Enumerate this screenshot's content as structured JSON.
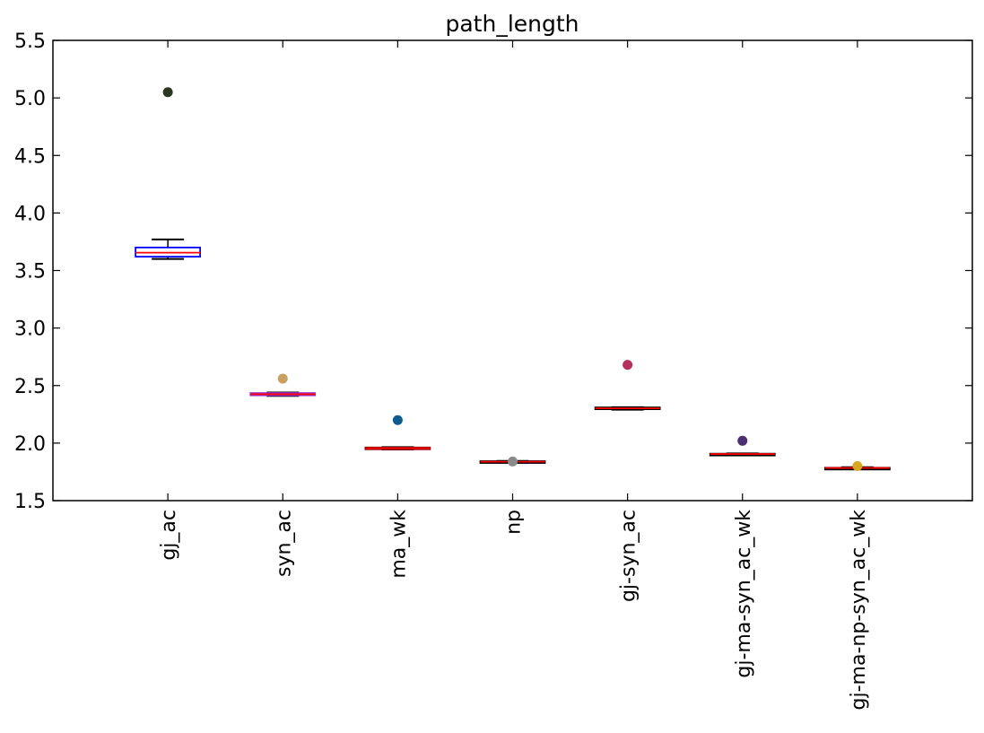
{
  "chart_data": {
    "type": "box",
    "title": "path_length",
    "xlabel": "",
    "ylabel": "",
    "ylim": [
      1.5,
      5.5
    ],
    "yticks": [
      "1.5",
      "2.0",
      "2.5",
      "3.0",
      "3.5",
      "4.0",
      "4.5",
      "5.0",
      "5.5"
    ],
    "grid": false,
    "categories": [
      "gj_ac",
      "syn_ac",
      "ma_wk",
      "np",
      "gj-syn_ac",
      "gj-ma-syn_ac_wk",
      "gj-ma-np-syn_ac_wk"
    ],
    "boxes": [
      {
        "q1": 3.62,
        "median": 3.655,
        "q3": 3.7,
        "whisker_low": 3.6,
        "whisker_high": 3.77,
        "box_color": "#0000ff",
        "whisker_color": "#000000",
        "median_color": "#ff0000"
      },
      {
        "q1": 2.415,
        "median": 2.425,
        "q3": 2.435,
        "whisker_low": 2.41,
        "whisker_high": 2.44,
        "box_color": "#9932cc",
        "whisker_color": "#000000",
        "median_color": "#ff0000"
      },
      {
        "q1": 1.948,
        "median": 1.955,
        "q3": 1.962,
        "whisker_low": 1.945,
        "whisker_high": 1.965,
        "box_color": "#8b0000",
        "whisker_color": "#000000",
        "median_color": "#ff0000"
      },
      {
        "q1": 1.832,
        "median": 1.838,
        "q3": 1.843,
        "whisker_low": 1.83,
        "whisker_high": 1.845,
        "box_color": "#000000",
        "whisker_color": "#000000",
        "median_color": "#ff0000"
      },
      {
        "q1": 2.295,
        "median": 2.302,
        "q3": 2.31,
        "whisker_low": 2.29,
        "whisker_high": 2.312,
        "box_color": "#000000",
        "whisker_color": "#000000",
        "median_color": "#ff0000"
      },
      {
        "q1": 1.902,
        "median": 1.905,
        "q3": 1.908,
        "whisker_low": 1.9,
        "whisker_high": 1.91,
        "box_color": "#000000",
        "whisker_color": "#000000",
        "median_color": "#ff0000"
      },
      {
        "q1": 1.782,
        "median": 1.784,
        "q3": 1.786,
        "whisker_low": 1.78,
        "whisker_high": 1.79,
        "box_color": "#000000",
        "whisker_color": "#000000",
        "median_color": "#ff0000"
      }
    ],
    "outliers": [
      {
        "category": 0,
        "value": 5.05,
        "color": "#2b3520"
      },
      {
        "category": 1,
        "value": 2.56,
        "color": "#c9a062"
      },
      {
        "category": 2,
        "value": 2.2,
        "color": "#0f5a8f"
      },
      {
        "category": 3,
        "value": 1.84,
        "color": "#8a8a8a"
      },
      {
        "category": 4,
        "value": 2.68,
        "color": "#b5305a"
      },
      {
        "category": 5,
        "value": 2.02,
        "color": "#4b3070"
      },
      {
        "category": 6,
        "value": 1.8,
        "color": "#d6a822"
      }
    ]
  }
}
